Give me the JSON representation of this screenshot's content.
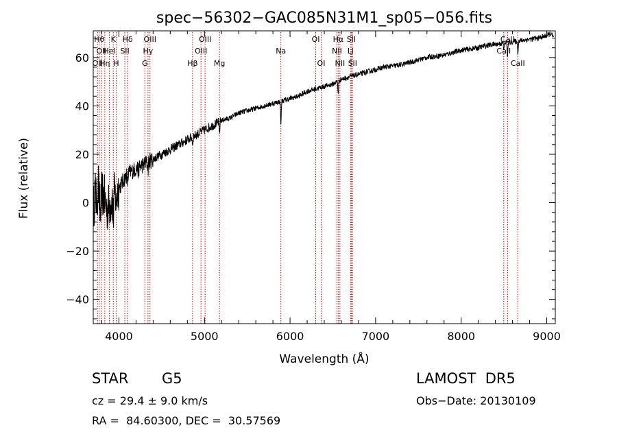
{
  "chart_data": {
    "type": "line",
    "title": "spec−56302−GAC085N31M1_sp05−056.fits",
    "xlabel": "Wavelength (Å)",
    "ylabel": "Flux (relative)",
    "xlim": [
      3700,
      9100
    ],
    "ylim": [
      -50,
      71
    ],
    "xticks": [
      4000,
      5000,
      6000,
      7000,
      8000,
      9000
    ],
    "xtick_labels": [
      "4000",
      "5000",
      "6000",
      "7000",
      "8000",
      "9000"
    ],
    "yticks": [
      -40,
      -20,
      0,
      20,
      40,
      60
    ],
    "ytick_labels": [
      "−40",
      "−20",
      "0",
      "20",
      "40",
      "60"
    ],
    "grid": false,
    "line_color": "#000000",
    "marker_line_color": "#cc0000",
    "series": [
      {
        "x": [
          3700,
          3720,
          3740,
          3760,
          3780,
          3800,
          3830,
          3860,
          3900,
          3950,
          4000,
          4050,
          4100,
          4200,
          4300,
          4400,
          4500,
          4600,
          4700,
          4800,
          4900,
          5000,
          5100,
          5200,
          5300,
          5400,
          5500,
          5600,
          5700,
          5800,
          5900,
          6000,
          6100,
          6200,
          6300,
          6400,
          6500,
          6600,
          6700,
          6800,
          6900,
          7000,
          7100,
          7200,
          7300,
          7400,
          7500,
          7600,
          7700,
          7800,
          7900,
          8000,
          8100,
          8200,
          8300,
          8400,
          8500,
          8600,
          8700,
          8800,
          8900,
          9000,
          9050,
          9080
        ],
        "y": [
          -5,
          5,
          0,
          8,
          -5,
          4,
          2,
          -3,
          0,
          3,
          6,
          9,
          12,
          14,
          16,
          18,
          20,
          22,
          24,
          26,
          28,
          30,
          32,
          34,
          35,
          37,
          38,
          39,
          40,
          41,
          42,
          43,
          44,
          46,
          47,
          48,
          49,
          51,
          52,
          53,
          54,
          55,
          56,
          56.5,
          57,
          58,
          59,
          60,
          60.5,
          61,
          62,
          63,
          63.5,
          64,
          65,
          65.5,
          66,
          66.5,
          67,
          67.5,
          68,
          69,
          70,
          68
        ]
      }
    ],
    "absorption_dips": [
      {
        "x": 3934,
        "depth": 8
      },
      {
        "x": 3969,
        "depth": 6
      },
      {
        "x": 4102,
        "depth": 4
      },
      {
        "x": 4227,
        "depth": 2
      },
      {
        "x": 4340,
        "depth": 3
      },
      {
        "x": 4861,
        "depth": 3
      },
      {
        "x": 5175,
        "depth": 5
      },
      {
        "x": 5893,
        "depth": 9
      },
      {
        "x": 6563,
        "depth": 5
      },
      {
        "x": 8498,
        "depth": 3
      },
      {
        "x": 8542,
        "depth": 6
      },
      {
        "x": 8662,
        "depth": 5
      }
    ],
    "line_markers": [
      {
        "x": 3750,
        "label": "OII",
        "row": 2
      },
      {
        "x": 3770,
        "label": "Hθ",
        "row": 0
      },
      {
        "x": 3797,
        "label": "OII",
        "row": 1
      },
      {
        "x": 3835,
        "label": "Hη",
        "row": 2
      },
      {
        "x": 3889,
        "label": "Hel",
        "row": 1
      },
      {
        "x": 3934,
        "label": "K",
        "row": 0
      },
      {
        "x": 3969,
        "label": "H",
        "row": 2
      },
      {
        "x": 4069,
        "label": "SII",
        "row": 1
      },
      {
        "x": 4102,
        "label": "Hδ",
        "row": 0
      },
      {
        "x": 4304,
        "label": "G",
        "row": 2
      },
      {
        "x": 4340,
        "label": "Hγ",
        "row": 1
      },
      {
        "x": 4363,
        "label": "OIII",
        "row": 0
      },
      {
        "x": 4861,
        "label": "Hβ",
        "row": 2
      },
      {
        "x": 4959,
        "label": "OIII",
        "row": 1
      },
      {
        "x": 5007,
        "label": "OIII",
        "row": 0
      },
      {
        "x": 5175,
        "label": "Mg",
        "row": 2
      },
      {
        "x": 5893,
        "label": "Na",
        "row": 1
      },
      {
        "x": 6300,
        "label": "OI",
        "row": 0
      },
      {
        "x": 6364,
        "label": "OI",
        "row": 2
      },
      {
        "x": 6548,
        "label": "NII",
        "row": 1
      },
      {
        "x": 6563,
        "label": "Hα",
        "row": 0
      },
      {
        "x": 6583,
        "label": "NII",
        "row": 2
      },
      {
        "x": 6707,
        "label": "Li",
        "row": 1
      },
      {
        "x": 6716,
        "label": "SII",
        "row": 0
      },
      {
        "x": 6731,
        "label": "SII",
        "row": 2
      },
      {
        "x": 8498,
        "label": "CaII",
        "row": 1
      },
      {
        "x": 8542,
        "label": "CaII",
        "row": 0
      },
      {
        "x": 8662,
        "label": "CaII",
        "row": 2
      }
    ]
  },
  "info": {
    "object_class": "STAR",
    "subclass": "G5",
    "cz_line": "cz = 29.4 ± 9.0 km/s",
    "coords_line": "RA =  84.60300, DEC =  30.57569",
    "survey": "LAMOST  DR5",
    "obs_date": "Obs−Date: 20130109"
  }
}
